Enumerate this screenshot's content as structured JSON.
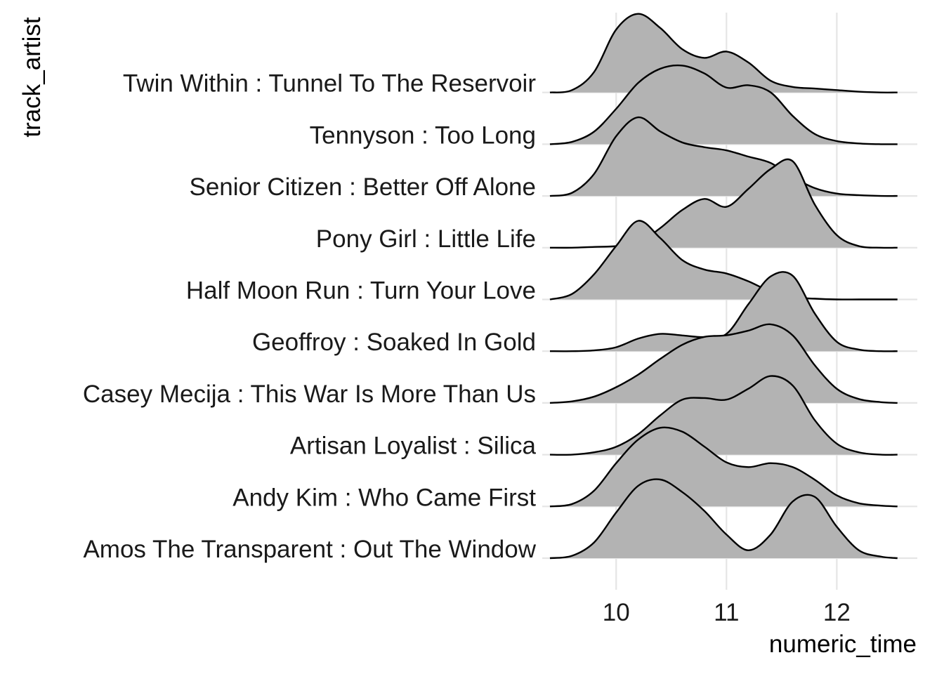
{
  "chart_data": {
    "type": "ridgeline",
    "title": "",
    "xlabel": "numeric_time",
    "ylabel": "track_artist",
    "xlim": [
      9.33,
      12.73
    ],
    "x_ticks": [
      10,
      11,
      12
    ],
    "grid": true,
    "fill_color": "#b3b3b3",
    "line_color": "#000000",
    "grid_color": "#e5e5e5",
    "density_x": [
      9.4,
      9.6,
      9.8,
      10.0,
      10.2,
      10.4,
      10.6,
      10.8,
      11.0,
      11.2,
      11.4,
      11.6,
      11.8,
      12.0,
      12.2,
      12.4,
      12.55
    ],
    "series": [
      {
        "name": "Amos The Transparent : Out The Window",
        "density": [
          0.0,
          0.03,
          0.2,
          0.58,
          0.92,
          1.0,
          0.84,
          0.6,
          0.3,
          0.1,
          0.3,
          0.72,
          0.78,
          0.4,
          0.1,
          0.02,
          0.0
        ]
      },
      {
        "name": "Andy Kim : Who Came First",
        "density": [
          0.0,
          0.03,
          0.2,
          0.55,
          0.85,
          1.0,
          0.95,
          0.76,
          0.56,
          0.5,
          0.55,
          0.5,
          0.34,
          0.14,
          0.04,
          0.01,
          0.0
        ]
      },
      {
        "name": "Artisan Loyalist : Silica",
        "density": [
          0.0,
          0.0,
          0.03,
          0.1,
          0.26,
          0.5,
          0.7,
          0.72,
          0.7,
          0.84,
          1.0,
          0.88,
          0.44,
          0.14,
          0.03,
          0.0,
          0.0
        ]
      },
      {
        "name": "Casey Mecija : This War Is More Than Us",
        "density": [
          0.0,
          0.02,
          0.08,
          0.2,
          0.36,
          0.56,
          0.74,
          0.84,
          0.86,
          0.92,
          1.0,
          0.86,
          0.48,
          0.18,
          0.05,
          0.01,
          0.0
        ]
      },
      {
        "name": "Geoffroy : Soaked In Gold",
        "density": [
          0.0,
          0.0,
          0.01,
          0.05,
          0.16,
          0.22,
          0.2,
          0.18,
          0.22,
          0.6,
          0.95,
          0.96,
          0.48,
          0.12,
          0.02,
          0.0,
          0.0
        ]
      },
      {
        "name": "Half Moon Run : Turn Your Love",
        "density": [
          0.0,
          0.07,
          0.32,
          0.68,
          1.0,
          0.78,
          0.5,
          0.38,
          0.33,
          0.23,
          0.1,
          0.03,
          0.01,
          0.0,
          0.0,
          0.0,
          0.0
        ]
      },
      {
        "name": "Pony Girl : Little Life",
        "density": [
          0.0,
          0.0,
          0.01,
          0.02,
          0.06,
          0.25,
          0.48,
          0.62,
          0.52,
          0.75,
          1.0,
          1.1,
          0.55,
          0.16,
          0.02,
          0.0,
          0.0
        ]
      },
      {
        "name": "Senior Citizen : Better Off Alone",
        "density": [
          0.0,
          0.04,
          0.28,
          0.76,
          1.0,
          0.82,
          0.68,
          0.62,
          0.58,
          0.5,
          0.42,
          0.24,
          0.1,
          0.03,
          0.01,
          0.0,
          0.0
        ]
      },
      {
        "name": "Tennyson : Too Long",
        "density": [
          0.0,
          0.03,
          0.16,
          0.45,
          0.78,
          0.96,
          1.0,
          0.9,
          0.72,
          0.75,
          0.66,
          0.36,
          0.13,
          0.04,
          0.01,
          0.0,
          0.0
        ]
      },
      {
        "name": "Twin Within : Tunnel To The Reservoir",
        "density": [
          0.0,
          0.03,
          0.26,
          0.8,
          1.0,
          0.82,
          0.55,
          0.44,
          0.52,
          0.38,
          0.15,
          0.07,
          0.05,
          0.03,
          0.01,
          0.0,
          0.0
        ]
      }
    ]
  }
}
